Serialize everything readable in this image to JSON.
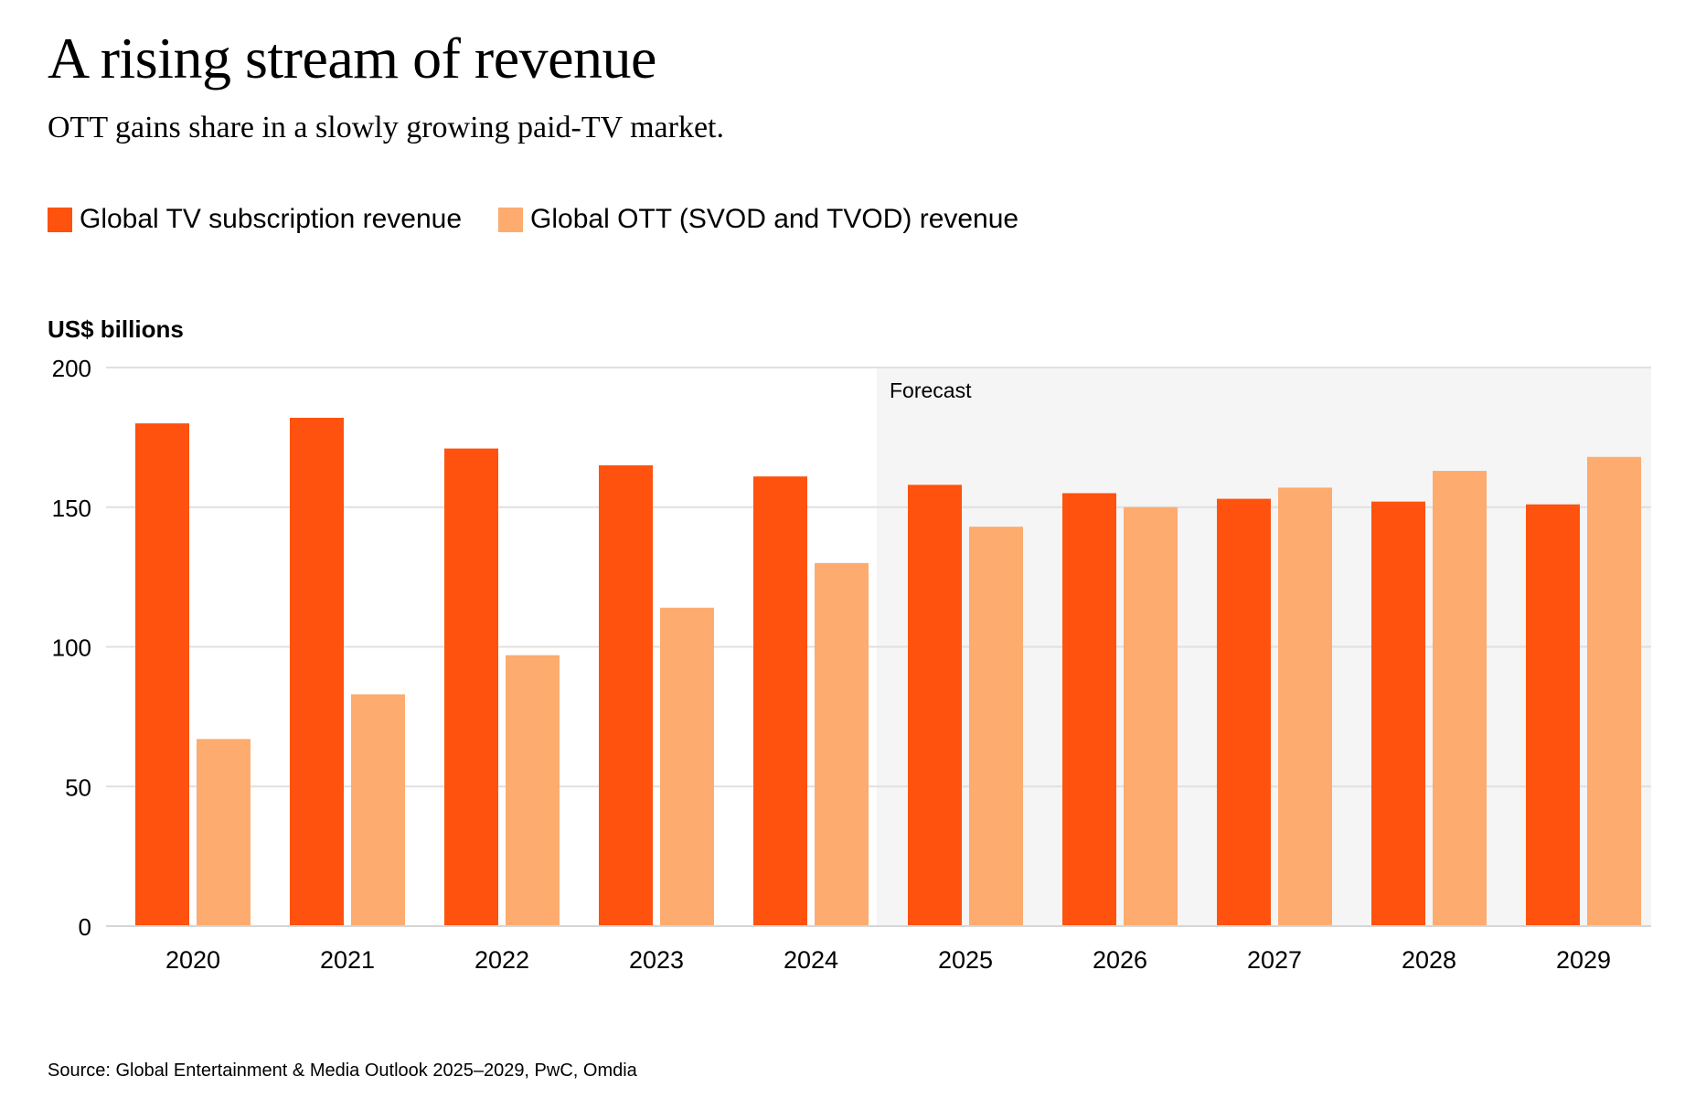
{
  "title": "A rising stream of revenue",
  "subtitle": "OTT gains share in a slowly growing paid-TV market.",
  "source": "Source: Global Entertainment & Media Outlook 2025–2029, PwC, Omdia",
  "colors": {
    "tv": "#fe520e",
    "ott": "#fdab6f",
    "forecast_bg": "#f5f5f5",
    "grid": "#e0e0e0"
  },
  "chart_data": {
    "type": "bar",
    "title": "A rising stream of revenue",
    "subtitle": "OTT gains share in a slowly growing paid-TV market.",
    "ylabel": "US$ billions",
    "xlabel": "",
    "ylim": [
      0,
      200
    ],
    "yticks": [
      0,
      50,
      100,
      150,
      200
    ],
    "grid": true,
    "legend_position": "top-left",
    "categories": [
      "2020",
      "2021",
      "2022",
      "2023",
      "2024",
      "2025",
      "2026",
      "2027",
      "2028",
      "2029"
    ],
    "forecast": {
      "label": "Forecast",
      "start": "2025",
      "end": "2029"
    },
    "series": [
      {
        "name": "Global TV subscription revenue",
        "color": "#fe520e",
        "values": [
          180,
          182,
          171,
          165,
          161,
          158,
          155,
          153,
          152,
          151
        ]
      },
      {
        "name": "Global OTT (SVOD and TVOD) revenue",
        "color": "#fdab6f",
        "values": [
          67,
          83,
          97,
          114,
          130,
          143,
          150,
          157,
          163,
          168
        ]
      }
    ]
  }
}
